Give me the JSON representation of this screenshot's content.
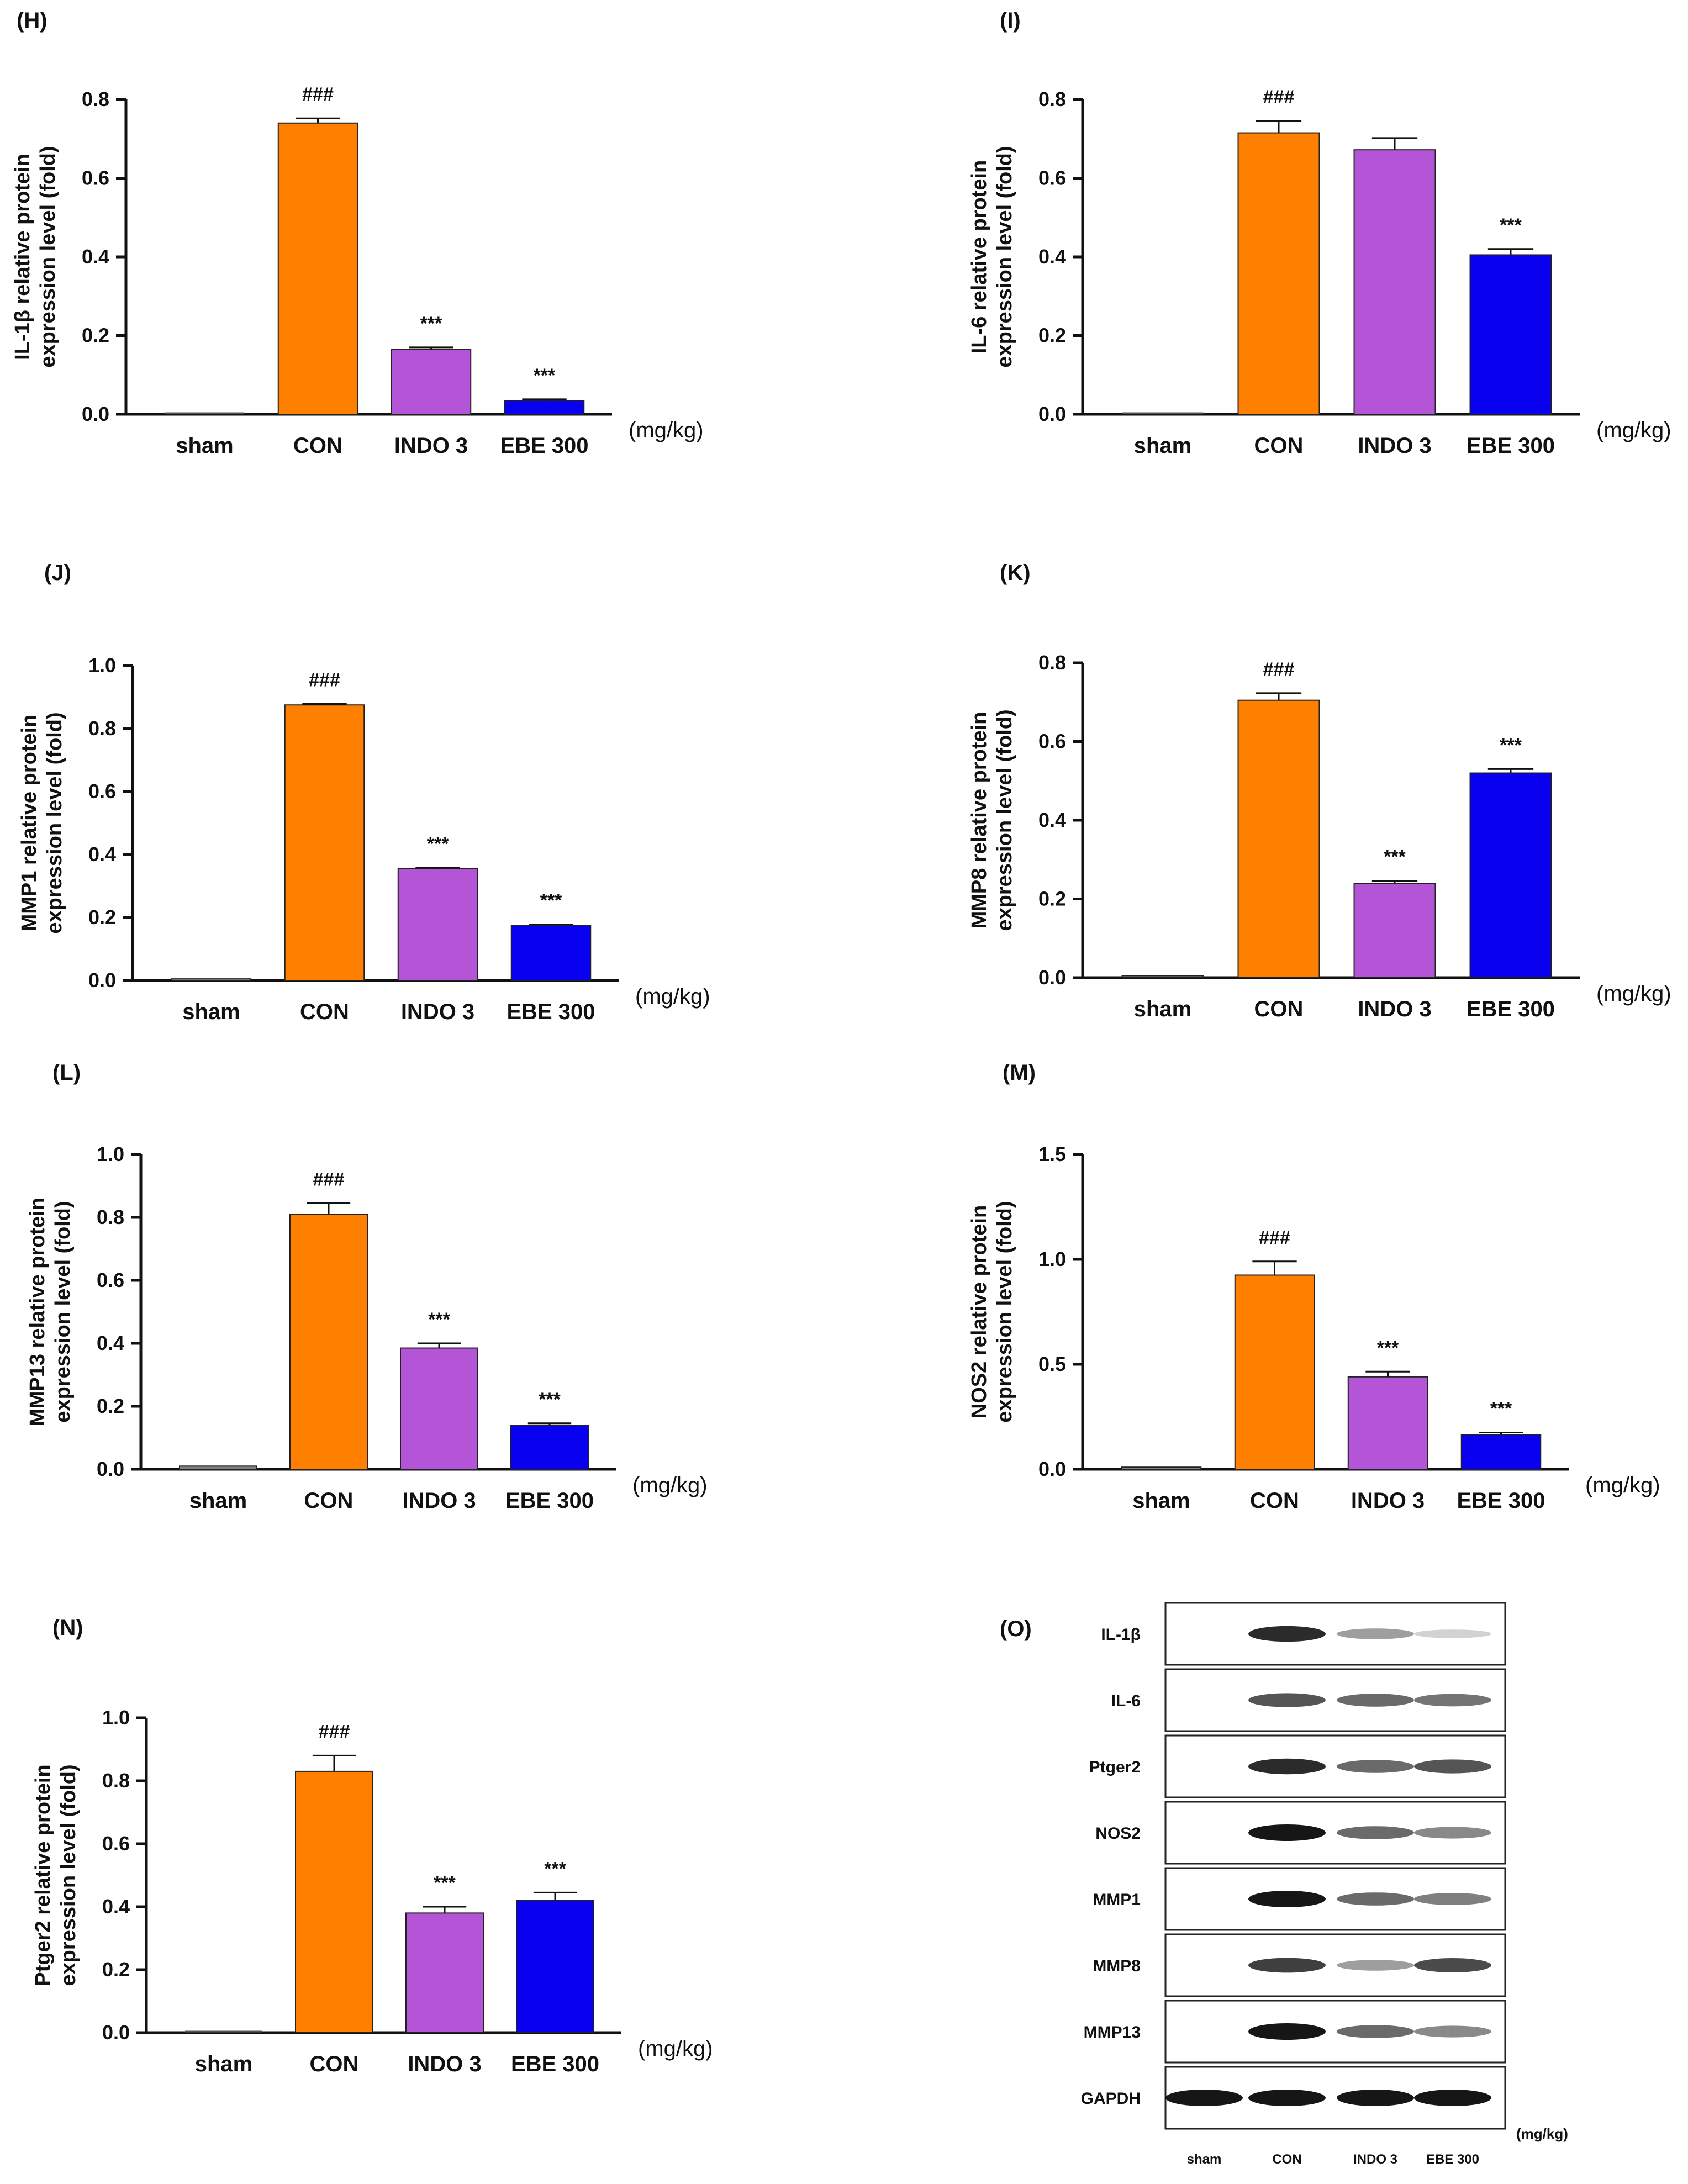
{
  "colors": {
    "sham": "#808080",
    "CON": "#ff8000",
    "INDO 3": "#b455d8",
    "EBE 300": "#0a00f0",
    "axis": "#111111",
    "band": "#111111"
  },
  "chart_data": [
    {
      "panel": "(H)",
      "type": "bar",
      "categories": [
        "sham",
        "CON",
        "INDO 3",
        "EBE 300"
      ],
      "values": [
        0.0,
        0.74,
        0.165,
        0.035
      ],
      "errors": [
        0.0,
        0.012,
        0.005,
        0.003
      ],
      "significance": [
        "",
        "###",
        "***",
        "***"
      ],
      "ylabel": [
        "IL-1β relative protein",
        "expression level (fold)"
      ],
      "ylim": [
        0,
        0.8
      ],
      "yticks": [
        0.0,
        0.2,
        0.4,
        0.6,
        0.8
      ],
      "ytick_labels": [
        "0.0",
        "0.2",
        "0.4",
        "0.6",
        "0.8"
      ],
      "unit": "(mg/kg)"
    },
    {
      "panel": "(I)",
      "type": "bar",
      "categories": [
        "sham",
        "CON",
        "INDO 3",
        "EBE 300"
      ],
      "values": [
        0.0,
        0.715,
        0.672,
        0.405
      ],
      "errors": [
        0.0,
        0.03,
        0.03,
        0.015
      ],
      "significance": [
        "",
        "###",
        "",
        "***"
      ],
      "ylabel": [
        "IL-6 relative protein",
        "expression level (fold)"
      ],
      "ylim": [
        0,
        0.8
      ],
      "yticks": [
        0.0,
        0.2,
        0.4,
        0.6,
        0.8
      ],
      "ytick_labels": [
        "0.0",
        "0.2",
        "0.4",
        "0.6",
        "0.8"
      ],
      "unit": "(mg/kg)"
    },
    {
      "panel": "(J)",
      "type": "bar",
      "categories": [
        "sham",
        "CON",
        "INDO 3",
        "EBE 300"
      ],
      "values": [
        0.005,
        0.875,
        0.355,
        0.175
      ],
      "errors": [
        0.0,
        0.003,
        0.003,
        0.003
      ],
      "significance": [
        "",
        "###",
        "***",
        "***"
      ],
      "ylabel": [
        "MMP1 relative protein",
        "expression level (fold)"
      ],
      "ylim": [
        0,
        1.0
      ],
      "yticks": [
        0.0,
        0.2,
        0.4,
        0.6,
        0.8,
        1.0
      ],
      "ytick_labels": [
        "0.0",
        "0.2",
        "0.4",
        "0.6",
        "0.8",
        "1.0"
      ],
      "unit": "(mg/kg)"
    },
    {
      "panel": "(K)",
      "type": "bar",
      "categories": [
        "sham",
        "CON",
        "INDO 3",
        "EBE 300"
      ],
      "values": [
        0.005,
        0.705,
        0.24,
        0.52
      ],
      "errors": [
        0.0,
        0.018,
        0.006,
        0.01
      ],
      "significance": [
        "",
        "###",
        "***",
        "***"
      ],
      "ylabel": [
        "MMP8 relative protein",
        "expression level (fold)"
      ],
      "ylim": [
        0,
        0.8
      ],
      "yticks": [
        0.0,
        0.2,
        0.4,
        0.6,
        0.8
      ],
      "ytick_labels": [
        "0.0",
        "0.2",
        "0.4",
        "0.6",
        "0.8"
      ],
      "unit": "(mg/kg)"
    },
    {
      "panel": "(L)",
      "type": "bar",
      "categories": [
        "sham",
        "CON",
        "INDO 3",
        "EBE 300"
      ],
      "values": [
        0.01,
        0.81,
        0.385,
        0.14
      ],
      "errors": [
        0.0,
        0.035,
        0.015,
        0.006
      ],
      "significance": [
        "",
        "###",
        "***",
        "***"
      ],
      "ylabel": [
        "MMP13 relative protein",
        "expression level (fold)"
      ],
      "ylim": [
        0,
        1.0
      ],
      "yticks": [
        0.0,
        0.2,
        0.4,
        0.6,
        0.8,
        1.0
      ],
      "ytick_labels": [
        "0.0",
        "0.2",
        "0.4",
        "0.6",
        "0.8",
        "1.0"
      ],
      "unit": "(mg/kg)"
    },
    {
      "panel": "(M)",
      "type": "bar",
      "categories": [
        "sham",
        "CON",
        "INDO 3",
        "EBE 300"
      ],
      "values": [
        0.01,
        0.925,
        0.44,
        0.165
      ],
      "errors": [
        0.0,
        0.065,
        0.025,
        0.01
      ],
      "significance": [
        "",
        "###",
        "***",
        "***"
      ],
      "ylabel": [
        "NOS2 relative protein",
        "expression level (fold)"
      ],
      "ylim": [
        0,
        1.5
      ],
      "yticks": [
        0.0,
        0.5,
        1.0,
        1.5
      ],
      "ytick_labels": [
        "0.0",
        "0.5",
        "1.0",
        "1.5"
      ],
      "unit": "(mg/kg)"
    },
    {
      "panel": "(N)",
      "type": "bar",
      "categories": [
        "sham",
        "CON",
        "INDO 3",
        "EBE 300"
      ],
      "values": [
        0.0,
        0.83,
        0.38,
        0.42
      ],
      "errors": [
        0.0,
        0.05,
        0.02,
        0.025
      ],
      "significance": [
        "",
        "###",
        "***",
        "***"
      ],
      "ylabel": [
        "Ptger2 relative protein",
        "expression level (fold)"
      ],
      "ylim": [
        0,
        1.0
      ],
      "yticks": [
        0.0,
        0.2,
        0.4,
        0.6,
        0.8,
        1.0
      ],
      "ytick_labels": [
        "0.0",
        "0.2",
        "0.4",
        "0.6",
        "0.8",
        "1.0"
      ],
      "unit": "(mg/kg)"
    }
  ],
  "western_blot": {
    "panel": "(O)",
    "rows": [
      {
        "label": "IL-1β",
        "intensity": [
          0.0,
          0.9,
          0.35,
          0.1
        ]
      },
      {
        "label": "IL-6",
        "intensity": [
          0.0,
          0.7,
          0.6,
          0.55
        ]
      },
      {
        "label": "Ptger2",
        "intensity": [
          0.0,
          0.9,
          0.6,
          0.7
        ]
      },
      {
        "label": "NOS2",
        "intensity": [
          0.0,
          1.0,
          0.6,
          0.45
        ]
      },
      {
        "label": "MMP1",
        "intensity": [
          0.0,
          1.0,
          0.6,
          0.5
        ]
      },
      {
        "label": "MMP8",
        "intensity": [
          0.0,
          0.8,
          0.35,
          0.75
        ]
      },
      {
        "label": "MMP13",
        "intensity": [
          0.0,
          1.0,
          0.6,
          0.45
        ]
      },
      {
        "label": "GAPDH",
        "intensity": [
          1.0,
          1.0,
          1.0,
          1.0
        ]
      }
    ],
    "categories": [
      "sham",
      "CON",
      "INDO 3",
      "EBE 300"
    ],
    "unit": "(mg/kg)"
  }
}
